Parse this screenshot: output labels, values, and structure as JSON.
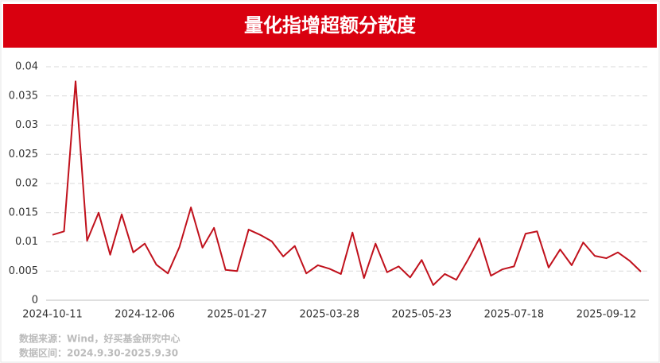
{
  "chart_data": {
    "type": "line",
    "title": "量化指增超额分散度",
    "categories": [
      "2024-10-11",
      null,
      null,
      null,
      null,
      null,
      null,
      null,
      "2024-12-06",
      null,
      null,
      null,
      null,
      null,
      null,
      null,
      "2025-01-27",
      null,
      null,
      null,
      null,
      null,
      null,
      null,
      "2025-03-28",
      null,
      null,
      null,
      null,
      null,
      null,
      null,
      "2025-05-23",
      null,
      null,
      null,
      null,
      null,
      null,
      null,
      "2025-07-18",
      null,
      null,
      null,
      null,
      null,
      null,
      null,
      "2025-09-12",
      null,
      null,
      null
    ],
    "series": [
      {
        "name": "量化指增超额分散度",
        "color": "#c0111c",
        "values": [
          0.0112,
          0.0118,
          0.0375,
          0.0102,
          0.015,
          0.0078,
          0.0147,
          0.0082,
          0.0097,
          0.0061,
          0.0046,
          0.0091,
          0.0159,
          0.009,
          0.0124,
          0.0052,
          0.005,
          0.0121,
          0.0112,
          0.0101,
          0.0075,
          0.0093,
          0.0046,
          0.006,
          0.0054,
          0.0045,
          0.0116,
          0.0038,
          0.0097,
          0.0048,
          0.0058,
          0.0039,
          0.0069,
          0.0026,
          0.0045,
          0.0035,
          0.0069,
          0.0106,
          0.0042,
          0.0053,
          0.0058,
          0.0114,
          0.0118,
          0.0056,
          0.0087,
          0.006,
          0.0099,
          0.0076,
          0.0072,
          0.0082,
          0.0068,
          0.0049
        ]
      }
    ],
    "ylim": [
      0,
      0.04
    ],
    "yticks": [
      0,
      0.005,
      0.01,
      0.015,
      0.02,
      0.025,
      0.03,
      0.035,
      0.04
    ],
    "grid": true,
    "source": [
      "数据来源：Wind，好买基金研究中心",
      "数据区间：2024.9.30-2025.9.30"
    ]
  }
}
